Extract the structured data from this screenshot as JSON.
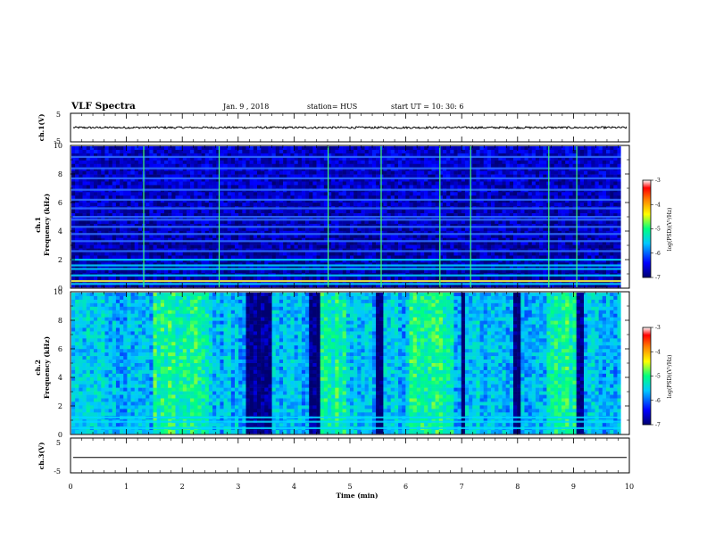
{
  "header": {
    "title": "VLF Spectra",
    "date": "Jan. 9 , 2018",
    "station": "station= HUS",
    "start": "start UT =  10: 30: 6"
  },
  "colorbar": {
    "ticks": [
      "-3",
      "-4",
      "-5",
      "-6",
      "-7"
    ],
    "label": "log(PSD)(V²/Hz)",
    "colors": [
      "#000070",
      "#0000ff",
      "#00c8ff",
      "#00ff80",
      "#ffff00",
      "#ff8000",
      "#ff0000",
      "#ffffff"
    ]
  },
  "chart_data": [
    {
      "type": "line",
      "name": "ch1-waveform",
      "ylabel": "ch.1(V)",
      "yticks": [
        "5",
        "-5"
      ],
      "ylim": [
        -5,
        5
      ],
      "xlim": [
        0,
        10
      ],
      "level": 0,
      "amplitude": 0.35,
      "color": "#000000"
    },
    {
      "type": "heatmap",
      "name": "ch1-spectrogram",
      "ylabel_line1": "ch.1",
      "ylabel_line2": "Frequency (kHz)",
      "yticks": [
        "0",
        "2",
        "4",
        "6",
        "8",
        "10"
      ],
      "ylim": [
        0,
        10
      ],
      "xlim": [
        0,
        9.85
      ],
      "zlim": [
        -7,
        -3
      ],
      "background_level": -6.6,
      "bands_khz": [
        0.3,
        0.5,
        0.9,
        1.35,
        1.6,
        2.0,
        2.6,
        3.3,
        3.8,
        4.3,
        4.8,
        5.0,
        5.6,
        6.2,
        6.9,
        7.7,
        8.4,
        9.2
      ],
      "bright_band_khz": 0.5,
      "vertical_lines_min": [
        1.3,
        2.65,
        4.6,
        5.55,
        6.6,
        7.15,
        8.55,
        9.05
      ]
    },
    {
      "type": "heatmap",
      "name": "ch2-spectrogram",
      "ylabel_line1": "ch.2",
      "ylabel_line2": "Frequency (kHz)",
      "yticks": [
        "0",
        "2",
        "4",
        "6",
        "8",
        "10"
      ],
      "ylim": [
        0,
        10
      ],
      "xlim": [
        0,
        9.85
      ],
      "zlim": [
        -7,
        -3
      ],
      "background_level": -5.8,
      "quiet_intervals_min": [
        [
          3.1,
          3.35
        ],
        [
          3.35,
          3.55
        ],
        [
          4.25,
          4.4
        ],
        [
          5.4,
          5.55
        ],
        [
          6.95,
          7.05
        ],
        [
          7.9,
          8.05
        ],
        [
          9.05,
          9.15
        ]
      ],
      "active_intervals_min": [
        [
          1.4,
          2.4
        ],
        [
          4.4,
          4.9
        ],
        [
          6.0,
          6.8
        ],
        [
          8.5,
          9.0
        ]
      ],
      "bands_khz": [
        0.45,
        0.9,
        1.2
      ]
    },
    {
      "type": "line",
      "name": "ch3-waveform",
      "ylabel": "ch.3(V)",
      "yticks": [
        "5",
        "-5"
      ],
      "ylim": [
        -5,
        5
      ],
      "xlim": [
        0,
        10
      ],
      "level": -0.6,
      "amplitude": 0.0,
      "color": "#000000"
    }
  ],
  "xaxis": {
    "label": "Time (min)",
    "ticks": [
      "0",
      "1",
      "2",
      "3",
      "4",
      "5",
      "6",
      "7",
      "8",
      "9",
      "10"
    ],
    "xlim": [
      0,
      10
    ]
  }
}
